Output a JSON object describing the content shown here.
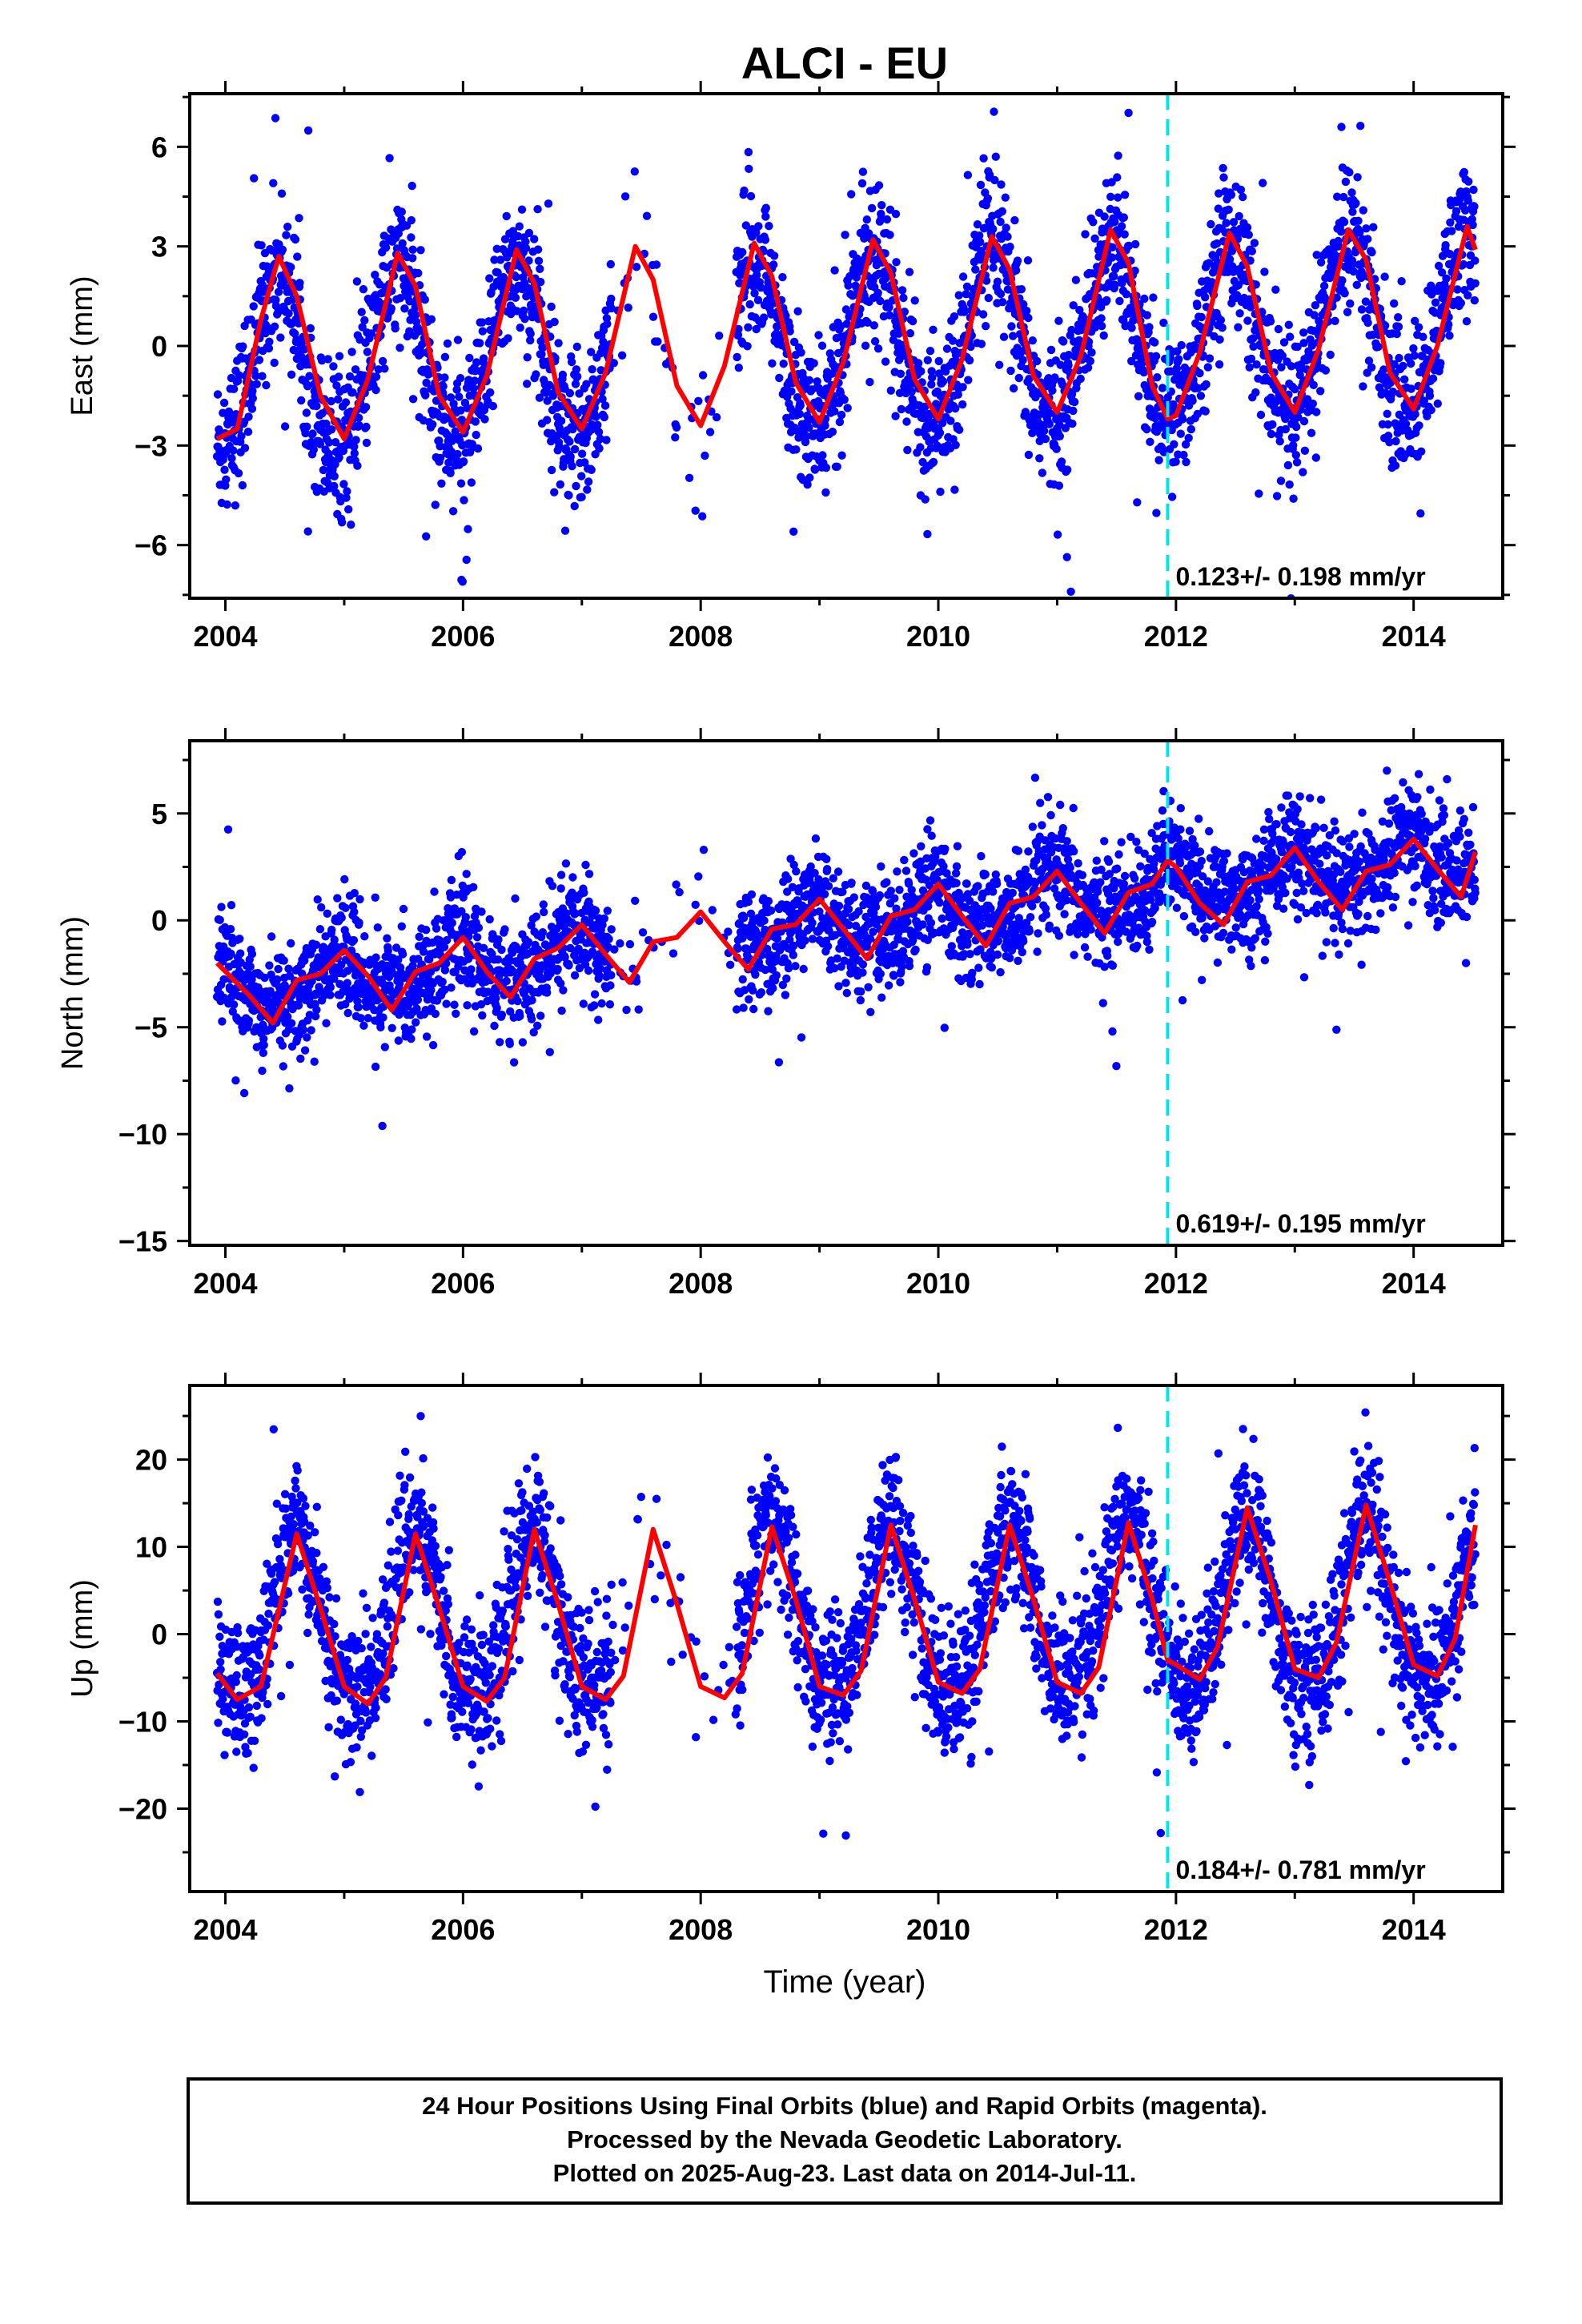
{
  "title": "ALCI - EU",
  "x_axis_label": "Time (year)",
  "footer": {
    "line1": "24 Hour Positions Using Final Orbits (blue) and Rapid Orbits (magenta).",
    "line2": "Processed by the Nevada Geodetic Laboratory.",
    "line3": "Plotted on 2025-Aug-23. Last data on 2014-Jul-11."
  },
  "colors": {
    "points": "#0000ff",
    "fit": "#ff0000",
    "event_line": "#00e5e5",
    "frame": "#000000"
  },
  "chart_data": [
    {
      "type": "scatter",
      "ylabel": "East (mm)",
      "xlim": [
        2003.7,
        2014.75
      ],
      "ylim": [
        -7.6,
        7.6
      ],
      "xticks": [
        "2004",
        "2006",
        "2008",
        "2010",
        "2012",
        "2014"
      ],
      "yticks": [
        "6",
        "3",
        "0",
        "−3",
        "−6"
      ],
      "event_year": 2011.93,
      "rate_label": "0.123+/- 0.198 mm/yr",
      "data_span": [
        2003.93,
        2014.52
      ],
      "model": {
        "trend_mm_per_yr": 0.123,
        "offset": 0.0,
        "annual_amp": 2.6,
        "annual_peak_frac": 0.45,
        "semiannual_amp": 0.25,
        "noise": 1.1
      },
      "fit_curve": {
        "x": [
          2003.93,
          2004.1,
          2004.3,
          2004.45,
          2004.6,
          2004.8,
          2005.0,
          2005.2,
          2005.45,
          2005.6,
          2005.8,
          2006.0,
          2006.2,
          2006.45,
          2006.6,
          2006.8,
          2007.0,
          2007.2,
          2007.45,
          2007.6,
          2007.8,
          2008.0,
          2008.2,
          2008.45,
          2008.6,
          2008.8,
          2009.0,
          2009.2,
          2009.45,
          2009.6,
          2009.8,
          2010.0,
          2010.2,
          2010.45,
          2010.6,
          2010.8,
          2011.0,
          2011.2,
          2011.45,
          2011.6,
          2011.8,
          2011.93,
          2012.0,
          2012.2,
          2012.45,
          2012.6,
          2012.8,
          2013.0,
          2013.2,
          2013.45,
          2013.6,
          2013.8,
          2014.0,
          2014.2,
          2014.45,
          2014.52
        ],
        "y": [
          -2.8,
          -2.5,
          0.8,
          2.7,
          1.5,
          -1.5,
          -2.8,
          -1.0,
          2.8,
          1.8,
          -1.5,
          -2.6,
          -0.9,
          2.9,
          1.9,
          -1.4,
          -2.5,
          -0.8,
          3.0,
          2.0,
          -1.2,
          -2.4,
          -0.6,
          3.1,
          2.1,
          -1.1,
          -2.3,
          -0.5,
          3.2,
          2.2,
          -1.0,
          -2.2,
          -0.4,
          3.3,
          2.3,
          -0.9,
          -2.0,
          -0.3,
          3.5,
          2.5,
          -1.2,
          -2.2,
          -2.1,
          -0.2,
          3.4,
          2.4,
          -0.8,
          -2.0,
          -0.1,
          3.5,
          2.6,
          -0.8,
          -1.9,
          0.0,
          3.6,
          2.9
        ]
      }
    },
    {
      "type": "scatter",
      "ylabel": "North (mm)",
      "xlim": [
        2003.7,
        2014.75
      ],
      "ylim": [
        -15.2,
        8.4
      ],
      "xticks": [
        "2004",
        "2006",
        "2008",
        "2010",
        "2012",
        "2014"
      ],
      "yticks": [
        "5",
        "0",
        "−5",
        "−10",
        "−15"
      ],
      "event_year": 2011.93,
      "rate_label": "0.619+/- 0.195 mm/yr",
      "data_span": [
        2003.93,
        2014.52
      ],
      "model": {
        "trend_mm_per_yr": 0.619,
        "offset": -0.2,
        "annual_amp": 1.0,
        "annual_peak_frac": 0.95,
        "semiannual_amp": 0.3,
        "noise": 1.3
      },
      "fit_curve": {
        "x": [
          2003.93,
          2004.2,
          2004.4,
          2004.6,
          2004.8,
          2005.0,
          2005.2,
          2005.4,
          2005.6,
          2005.8,
          2006.0,
          2006.2,
          2006.4,
          2006.6,
          2006.8,
          2007.0,
          2007.2,
          2007.4,
          2007.6,
          2007.8,
          2008.0,
          2008.2,
          2008.4,
          2008.6,
          2008.8,
          2009.0,
          2009.2,
          2009.4,
          2009.6,
          2009.8,
          2010.0,
          2010.2,
          2010.4,
          2010.6,
          2010.8,
          2011.0,
          2011.2,
          2011.4,
          2011.6,
          2011.8,
          2011.93,
          2012.0,
          2012.2,
          2012.4,
          2012.6,
          2012.8,
          2013.0,
          2013.2,
          2013.4,
          2013.6,
          2013.8,
          2014.0,
          2014.2,
          2014.4,
          2014.52
        ],
        "y": [
          -2.0,
          -3.5,
          -4.8,
          -2.8,
          -2.5,
          -1.4,
          -2.6,
          -4.2,
          -2.4,
          -2.0,
          -0.8,
          -2.4,
          -3.6,
          -1.8,
          -1.3,
          -0.2,
          -1.6,
          -2.9,
          -1.0,
          -0.8,
          0.4,
          -1.0,
          -2.3,
          -0.4,
          -0.2,
          1.0,
          -0.4,
          -1.8,
          0.2,
          0.5,
          1.7,
          0.2,
          -1.2,
          0.8,
          1.1,
          2.3,
          0.8,
          -0.6,
          1.3,
          1.7,
          2.8,
          2.5,
          0.8,
          -0.2,
          1.8,
          2.1,
          3.4,
          1.8,
          0.5,
          2.3,
          2.6,
          3.8,
          2.4,
          1.1,
          3.2
        ]
      }
    },
    {
      "type": "scatter",
      "ylabel": "Up (mm)",
      "xlim": [
        2003.7,
        2014.75
      ],
      "ylim": [
        -29.5,
        28.5
      ],
      "xticks": [
        "2004",
        "2006",
        "2008",
        "2010",
        "2012",
        "2014"
      ],
      "yticks": [
        "20",
        "10",
        "0",
        "−10",
        "−20"
      ],
      "event_year": 2011.93,
      "rate_label": "0.184+/- 0.781 mm/yr",
      "data_span": [
        2003.93,
        2014.52
      ],
      "model": {
        "trend_mm_per_yr": 0.184,
        "offset": 2.0,
        "annual_amp": 9.5,
        "annual_peak_frac": 0.6,
        "semiannual_amp": 1.5,
        "noise": 4.0
      },
      "fit_curve": {
        "x": [
          2003.93,
          2004.1,
          2004.3,
          2004.6,
          2004.8,
          2005.0,
          2005.2,
          2005.35,
          2005.6,
          2005.8,
          2006.0,
          2006.2,
          2006.35,
          2006.6,
          2006.8,
          2007.0,
          2007.2,
          2007.35,
          2007.6,
          2007.8,
          2008.0,
          2008.2,
          2008.35,
          2008.6,
          2008.8,
          2009.0,
          2009.2,
          2009.35,
          2009.6,
          2009.8,
          2010.0,
          2010.2,
          2010.35,
          2010.6,
          2010.8,
          2011.0,
          2011.2,
          2011.35,
          2011.6,
          2011.8,
          2011.93,
          2012.0,
          2012.2,
          2012.35,
          2012.6,
          2012.8,
          2013.0,
          2013.2,
          2013.35,
          2013.6,
          2013.8,
          2014.0,
          2014.2,
          2014.35,
          2014.52
        ],
        "y": [
          -4.5,
          -7.5,
          -6.0,
          11.5,
          3.0,
          -6.0,
          -8.0,
          -5.0,
          11.5,
          3.0,
          -6.0,
          -7.7,
          -5.0,
          12.0,
          3.5,
          -6.0,
          -7.5,
          -4.8,
          12.0,
          3.5,
          -6.0,
          -7.3,
          -4.5,
          12.3,
          4.0,
          -6.0,
          -7.0,
          -4.2,
          12.5,
          4.0,
          -5.5,
          -6.8,
          -4.0,
          12.5,
          4.0,
          -5.5,
          -6.8,
          -3.8,
          12.8,
          4.0,
          -3.0,
          -3.5,
          -5.2,
          -1.5,
          14.5,
          6.0,
          -4.0,
          -5.0,
          -1.0,
          14.8,
          6.0,
          -3.5,
          -4.8,
          -0.5,
          12.5
        ]
      }
    }
  ]
}
